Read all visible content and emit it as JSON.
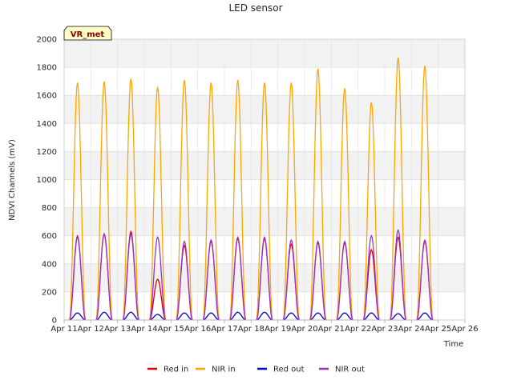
{
  "chart_data": {
    "type": "line",
    "title": "LED sensor",
    "xlabel": "Time",
    "ylabel": "NDVI Channels (mV)",
    "ylim": [
      0,
      2000
    ],
    "xlim": [
      11,
      26
    ],
    "yticks": [
      0,
      200,
      400,
      600,
      800,
      1000,
      1200,
      1400,
      1600,
      1800,
      2000
    ],
    "xticks": [
      {
        "v": 11,
        "label": "Apr 11"
      },
      {
        "v": 12,
        "label": "Apr 12"
      },
      {
        "v": 13,
        "label": "Apr 13"
      },
      {
        "v": 14,
        "label": "Apr 14"
      },
      {
        "v": 15,
        "label": "Apr 15"
      },
      {
        "v": 16,
        "label": "Apr 16"
      },
      {
        "v": 17,
        "label": "Apr 17"
      },
      {
        "v": 18,
        "label": "Apr 18"
      },
      {
        "v": 19,
        "label": "Apr 19"
      },
      {
        "v": 20,
        "label": "Apr 20"
      },
      {
        "v": 21,
        "label": "Apr 21"
      },
      {
        "v": 22,
        "label": "Apr 22"
      },
      {
        "v": 23,
        "label": "Apr 23"
      },
      {
        "v": 24,
        "label": "Apr 24"
      },
      {
        "v": 25,
        "label": "Apr 25"
      },
      {
        "v": 26,
        "label": "Apr 26"
      }
    ],
    "annotation": "VR_met",
    "series": [
      {
        "name": "Red in",
        "color": "#dd0000",
        "days": [
          11.5,
          12.5,
          13.5,
          14.5,
          15.5,
          16.5,
          17.5,
          18.5,
          19.5,
          20.5,
          21.5,
          22.5,
          23.5,
          24.5
        ],
        "peaks": [
          590,
          610,
          630,
          290,
          530,
          560,
          580,
          580,
          540,
          550,
          550,
          500,
          590,
          560
        ]
      },
      {
        "name": "NIR in",
        "color": "#ffa500",
        "days": [
          11.5,
          12.5,
          13.5,
          14.5,
          15.5,
          16.5,
          17.5,
          18.5,
          19.5,
          20.5,
          21.5,
          22.5,
          23.5,
          24.5
        ],
        "peaks": [
          1690,
          1700,
          1720,
          1660,
          1710,
          1690,
          1710,
          1690,
          1690,
          1790,
          1650,
          1550,
          1870,
          1810
        ]
      },
      {
        "name": "Red out",
        "color": "#0000cc",
        "days": [
          11.5,
          12.5,
          13.5,
          14.5,
          15.5,
          16.5,
          17.5,
          18.5,
          19.5,
          20.5,
          21.5,
          22.5,
          23.5,
          24.5
        ],
        "peaks": [
          50,
          55,
          55,
          40,
          50,
          50,
          55,
          55,
          50,
          50,
          50,
          50,
          45,
          50
        ]
      },
      {
        "name": "NIR out",
        "color": "#9a32cd",
        "days": [
          11.5,
          12.5,
          13.5,
          14.5,
          15.5,
          16.5,
          17.5,
          18.5,
          19.5,
          20.5,
          21.5,
          22.5,
          23.5,
          24.5
        ],
        "peaks": [
          600,
          615,
          610,
          590,
          560,
          570,
          590,
          590,
          570,
          560,
          560,
          600,
          640,
          570
        ]
      }
    ]
  }
}
